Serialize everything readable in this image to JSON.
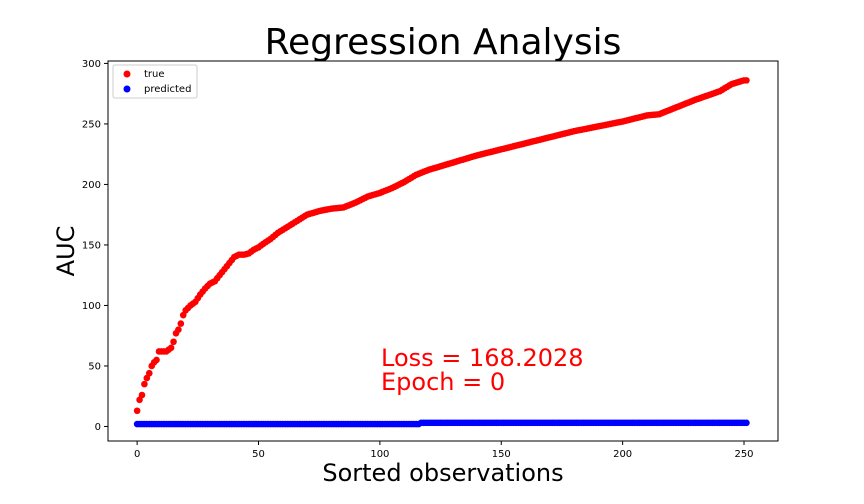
{
  "chart_data": {
    "type": "scatter",
    "title": "Regression Analysis",
    "xlabel": "Sorted observations",
    "ylabel": "AUC",
    "xlim": [
      -12,
      264
    ],
    "ylim": [
      -12,
      302
    ],
    "xticks": [
      0,
      50,
      100,
      150,
      200,
      250
    ],
    "yticks": [
      0,
      50,
      100,
      150,
      200,
      250,
      300
    ],
    "legend_position": "top-left",
    "grid": false,
    "colors": {
      "true": "#ff0000",
      "predicted": "#0000ff"
    },
    "series": [
      {
        "name": "true",
        "color": "#ff0000",
        "curve": {
          "x": [
            0,
            1,
            2,
            3,
            4,
            5,
            6,
            7,
            8,
            9,
            10,
            11,
            12,
            14,
            15,
            16,
            17,
            18,
            19,
            20,
            22,
            24,
            26,
            28,
            30,
            32,
            34,
            36,
            38,
            40,
            42,
            44,
            46,
            48,
            50,
            52,
            55,
            58,
            62,
            66,
            70,
            75,
            80,
            85,
            90,
            95,
            100,
            105,
            110,
            115,
            120,
            125,
            130,
            140,
            150,
            160,
            170,
            180,
            190,
            200,
            210,
            215,
            220,
            230,
            240,
            245,
            250,
            251
          ],
          "y": [
            13,
            22,
            26,
            35,
            40,
            44,
            50,
            53,
            55,
            62,
            62,
            62,
            62,
            65,
            70,
            77,
            80,
            85,
            92,
            96,
            100,
            103,
            109,
            114,
            118,
            120,
            125,
            130,
            135,
            140,
            142,
            142,
            143,
            146,
            148,
            151,
            155,
            160,
            165,
            170,
            175,
            178,
            180,
            181,
            185,
            190,
            193,
            197,
            202,
            208,
            212,
            215,
            218,
            224,
            229,
            234,
            239,
            244,
            248,
            252,
            257,
            258,
            262,
            270,
            277,
            283,
            286,
            286
          ]
        }
      },
      {
        "name": "predicted",
        "color": "#0000ff",
        "curve": {
          "x": [
            0,
            116,
            117,
            251
          ],
          "y": [
            2,
            2,
            3,
            3
          ]
        }
      }
    ],
    "annotations": [
      {
        "text": "Loss = 168.2028",
        "color": "#ff0000"
      },
      {
        "text": "Epoch = 0",
        "color": "#ff0000"
      }
    ]
  }
}
